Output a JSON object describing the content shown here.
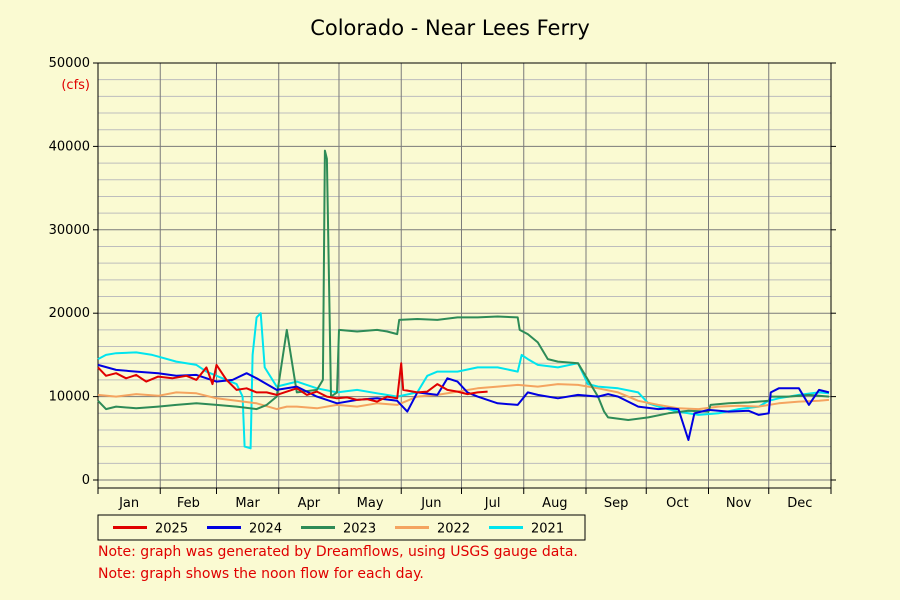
{
  "chart_data": {
    "type": "line",
    "title": "Colorado - Near Lees Ferry",
    "y_unit": "(cfs)",
    "ylim": [
      0,
      50000
    ],
    "yticks": [
      0,
      10000,
      20000,
      30000,
      40000,
      50000
    ],
    "xlim": [
      1,
      366
    ],
    "x_unit": "day of year",
    "months": [
      "Jan",
      "Feb",
      "Mar",
      "Apr",
      "May",
      "Jun",
      "Jul",
      "Aug",
      "Sep",
      "Oct",
      "Nov",
      "Dec"
    ],
    "grid": true,
    "legend_position": "bottom",
    "series": [
      {
        "name": "2025",
        "color": "#e00000",
        "points": [
          [
            1,
            13500
          ],
          [
            5,
            12500
          ],
          [
            10,
            12800
          ],
          [
            15,
            12200
          ],
          [
            20,
            12600
          ],
          [
            25,
            11800
          ],
          [
            31,
            12400
          ],
          [
            38,
            12200
          ],
          [
            45,
            12500
          ],
          [
            50,
            12000
          ],
          [
            55,
            13500
          ],
          [
            58,
            11500
          ],
          [
            60,
            13800
          ],
          [
            65,
            12000
          ],
          [
            70,
            10800
          ],
          [
            75,
            11000
          ],
          [
            80,
            10500
          ],
          [
            85,
            10500
          ],
          [
            90,
            10200
          ],
          [
            100,
            11000
          ],
          [
            105,
            10200
          ],
          [
            110,
            10600
          ],
          [
            115,
            10000
          ],
          [
            120,
            9800
          ],
          [
            125,
            9900
          ],
          [
            130,
            9600
          ],
          [
            135,
            9700
          ],
          [
            140,
            9400
          ],
          [
            145,
            10000
          ],
          [
            150,
            9800
          ],
          [
            152,
            14000
          ],
          [
            153,
            10800
          ],
          [
            160,
            10500
          ],
          [
            165,
            10600
          ],
          [
            170,
            11500
          ],
          [
            175,
            10800
          ],
          [
            180,
            10600
          ],
          [
            185,
            10300
          ],
          [
            190,
            10500
          ],
          [
            195,
            10600
          ]
        ]
      },
      {
        "name": "2024",
        "color": "#0000e0",
        "points": [
          [
            1,
            13800
          ],
          [
            10,
            13200
          ],
          [
            20,
            13000
          ],
          [
            31,
            12800
          ],
          [
            40,
            12500
          ],
          [
            50,
            12600
          ],
          [
            60,
            11800
          ],
          [
            68,
            12000
          ],
          [
            75,
            12800
          ],
          [
            80,
            12200
          ],
          [
            90,
            10800
          ],
          [
            100,
            11200
          ],
          [
            110,
            10000
          ],
          [
            120,
            9200
          ],
          [
            130,
            9600
          ],
          [
            140,
            9800
          ],
          [
            150,
            9500
          ],
          [
            155,
            8200
          ],
          [
            160,
            10500
          ],
          [
            170,
            10200
          ],
          [
            175,
            12200
          ],
          [
            180,
            11800
          ],
          [
            185,
            10500
          ],
          [
            190,
            10000
          ],
          [
            200,
            9200
          ],
          [
            210,
            9000
          ],
          [
            215,
            10500
          ],
          [
            220,
            10200
          ],
          [
            230,
            9800
          ],
          [
            240,
            10200
          ],
          [
            250,
            10000
          ],
          [
            255,
            10300
          ],
          [
            260,
            10000
          ],
          [
            270,
            8800
          ],
          [
            280,
            8500
          ],
          [
            285,
            8600
          ],
          [
            290,
            8500
          ],
          [
            295,
            4800
          ],
          [
            298,
            8000
          ],
          [
            305,
            8400
          ],
          [
            315,
            8200
          ],
          [
            325,
            8300
          ],
          [
            330,
            7800
          ],
          [
            335,
            8000
          ],
          [
            336,
            10500
          ],
          [
            340,
            11000
          ],
          [
            350,
            11000
          ],
          [
            355,
            9000
          ],
          [
            360,
            10800
          ],
          [
            365,
            10500
          ]
        ]
      },
      {
        "name": "2023",
        "color": "#2e8b57",
        "points": [
          [
            1,
            9500
          ],
          [
            5,
            8500
          ],
          [
            10,
            8800
          ],
          [
            20,
            8600
          ],
          [
            31,
            8800
          ],
          [
            40,
            9000
          ],
          [
            50,
            9200
          ],
          [
            60,
            9000
          ],
          [
            70,
            8800
          ],
          [
            80,
            8500
          ],
          [
            85,
            9000
          ],
          [
            90,
            10000
          ],
          [
            95,
            18000
          ],
          [
            100,
            10500
          ],
          [
            110,
            10800
          ],
          [
            113,
            12000
          ],
          [
            114,
            39500
          ],
          [
            115,
            38500
          ],
          [
            117,
            10000
          ],
          [
            120,
            10500
          ],
          [
            121,
            18000
          ],
          [
            130,
            17800
          ],
          [
            140,
            18000
          ],
          [
            145,
            17800
          ],
          [
            150,
            17500
          ],
          [
            151,
            19200
          ],
          [
            160,
            19300
          ],
          [
            170,
            19200
          ],
          [
            180,
            19500
          ],
          [
            190,
            19500
          ],
          [
            200,
            19600
          ],
          [
            210,
            19500
          ],
          [
            211,
            18000
          ],
          [
            215,
            17500
          ],
          [
            220,
            16500
          ],
          [
            225,
            14500
          ],
          [
            230,
            14200
          ],
          [
            240,
            14000
          ],
          [
            245,
            12000
          ],
          [
            250,
            10000
          ],
          [
            253,
            8200
          ],
          [
            255,
            7500
          ],
          [
            265,
            7200
          ],
          [
            275,
            7500
          ],
          [
            285,
            8000
          ],
          [
            295,
            8300
          ],
          [
            305,
            8200
          ],
          [
            306,
            9000
          ],
          [
            315,
            9200
          ],
          [
            325,
            9300
          ],
          [
            335,
            9500
          ],
          [
            336,
            10000
          ],
          [
            345,
            10000
          ],
          [
            355,
            10200
          ],
          [
            365,
            10000
          ]
        ]
      },
      {
        "name": "2022",
        "color": "#f4a460",
        "points": [
          [
            1,
            10200
          ],
          [
            10,
            10000
          ],
          [
            20,
            10300
          ],
          [
            31,
            10100
          ],
          [
            40,
            10500
          ],
          [
            50,
            10400
          ],
          [
            60,
            9800
          ],
          [
            70,
            9500
          ],
          [
            80,
            9200
          ],
          [
            90,
            8500
          ],
          [
            95,
            8800
          ],
          [
            100,
            8800
          ],
          [
            110,
            8600
          ],
          [
            120,
            9000
          ],
          [
            130,
            8800
          ],
          [
            140,
            9200
          ],
          [
            150,
            9000
          ],
          [
            160,
            10000
          ],
          [
            170,
            10200
          ],
          [
            180,
            10600
          ],
          [
            190,
            11000
          ],
          [
            200,
            11200
          ],
          [
            210,
            11400
          ],
          [
            220,
            11200
          ],
          [
            230,
            11500
          ],
          [
            240,
            11400
          ],
          [
            250,
            11000
          ],
          [
            260,
            10500
          ],
          [
            270,
            9500
          ],
          [
            280,
            9000
          ],
          [
            290,
            8600
          ],
          [
            300,
            8500
          ],
          [
            310,
            8800
          ],
          [
            320,
            8900
          ],
          [
            330,
            8800
          ],
          [
            340,
            9200
          ],
          [
            350,
            9400
          ],
          [
            360,
            9500
          ],
          [
            365,
            9600
          ]
        ]
      },
      {
        "name": "2021",
        "color": "#00e5ee",
        "points": [
          [
            1,
            14500
          ],
          [
            5,
            15000
          ],
          [
            10,
            15200
          ],
          [
            20,
            15300
          ],
          [
            28,
            15000
          ],
          [
            31,
            14800
          ],
          [
            40,
            14200
          ],
          [
            50,
            13800
          ],
          [
            55,
            13000
          ],
          [
            60,
            12500
          ],
          [
            65,
            12000
          ],
          [
            70,
            11500
          ],
          [
            73,
            10000
          ],
          [
            74,
            4000
          ],
          [
            77,
            3800
          ],
          [
            78,
            15000
          ],
          [
            80,
            19500
          ],
          [
            82,
            20000
          ],
          [
            84,
            13500
          ],
          [
            90,
            11200
          ],
          [
            100,
            11800
          ],
          [
            110,
            11000
          ],
          [
            120,
            10500
          ],
          [
            130,
            10800
          ],
          [
            140,
            10400
          ],
          [
            150,
            10000
          ],
          [
            160,
            10500
          ],
          [
            165,
            12500
          ],
          [
            170,
            13000
          ],
          [
            180,
            13000
          ],
          [
            190,
            13500
          ],
          [
            200,
            13500
          ],
          [
            210,
            13000
          ],
          [
            212,
            15000
          ],
          [
            215,
            14500
          ],
          [
            220,
            13800
          ],
          [
            230,
            13500
          ],
          [
            240,
            14000
          ],
          [
            245,
            11500
          ],
          [
            250,
            11200
          ],
          [
            260,
            11000
          ],
          [
            270,
            10500
          ],
          [
            275,
            9200
          ],
          [
            280,
            8800
          ],
          [
            290,
            8200
          ],
          [
            300,
            7800
          ],
          [
            310,
            8000
          ],
          [
            320,
            8500
          ],
          [
            330,
            8800
          ],
          [
            335,
            9500
          ],
          [
            340,
            9800
          ],
          [
            350,
            10200
          ],
          [
            360,
            10500
          ],
          [
            365,
            10400
          ]
        ]
      }
    ]
  },
  "notes": [
    "Note: graph was generated by Dreamflows, using USGS gauge data.",
    "Note: graph shows the noon flow for each day."
  ]
}
